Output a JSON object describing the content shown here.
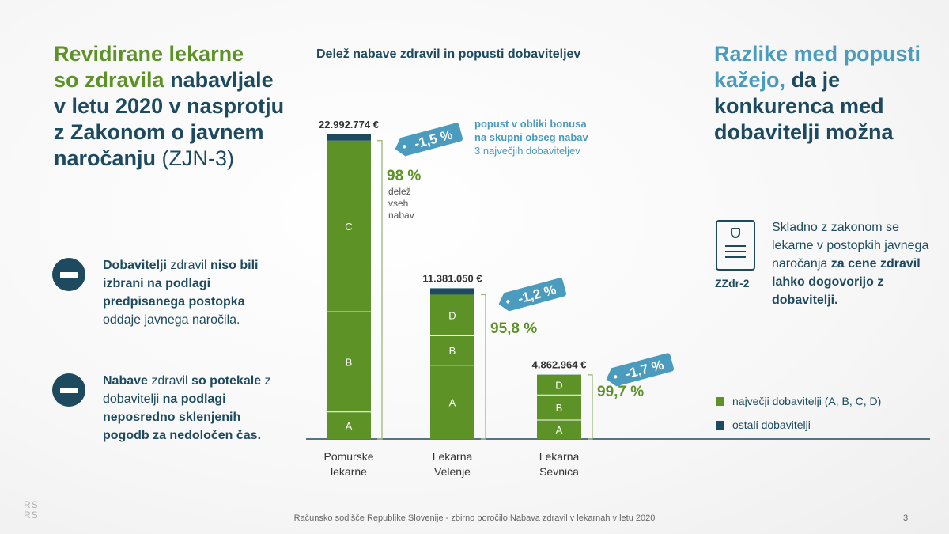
{
  "left": {
    "title_green_1": "Revidirane lekarne",
    "title_green_2": "so zdravila",
    "title_dark": "nabavljale v letu 2020 v nasprotju z Zakonom o javnem naročanju",
    "title_light": "(ZJN-3)",
    "bullets": [
      {
        "b1": "Dobavitelji",
        "n1": " zdravil ",
        "b2": "niso bili izbrani na podlagi predpisanega postopka",
        "n2": " oddaje javnega naročila."
      },
      {
        "b1": "Nabave",
        "n1": " zdravil ",
        "b2": "so potekale",
        "n2": " z dobavitelji ",
        "b3": "na podlagi neposredno sklenjenih pogodb za nedoločen čas."
      }
    ]
  },
  "right": {
    "title_blue": "Razlike med popusti kažejo,",
    "title_dark": "da je konkurenca med dobavitelji možna",
    "doc_label": "ZZdr-2",
    "text_normal": "Skladno z zakonom se lekarne v postopkih javnega naročanja",
    "text_bold": "za cene zdravil lahko dogovorijo z dobavitelji."
  },
  "chart_data": {
    "type": "bar",
    "title": "Delež nabave zdravil in popusti dobaviteljev",
    "categories": [
      "Pomurske lekarne",
      "Lekarna Velenje",
      "Lekarna Sevnica"
    ],
    "category_lines": [
      [
        "Pomurske",
        "lekarne"
      ],
      [
        "Lekarna",
        "Velenje"
      ],
      [
        "Lekarna",
        "Sevnica"
      ]
    ],
    "totals": [
      22992774,
      11381050,
      4862964
    ],
    "total_labels": [
      "22.992.774 €",
      "11.381.050 €",
      "4.862.964 €"
    ],
    "share_labels": [
      "98 %",
      "95,8 %",
      "99,7 %"
    ],
    "share_values": [
      98,
      95.8,
      99.7
    ],
    "discount_labels": [
      "-1,5 %",
      "-1,2 %",
      "-1,7 %"
    ],
    "discount_values": [
      -1.5,
      -1.2,
      -1.7
    ],
    "segments": [
      [
        {
          "label": "A",
          "share": 0.089
        },
        {
          "label": "B",
          "share": 0.329
        },
        {
          "label": "C",
          "share": 0.562
        }
      ],
      [
        {
          "label": "A",
          "share": 0.489
        },
        {
          "label": "B",
          "share": 0.196
        },
        {
          "label": "D",
          "share": 0.273
        }
      ],
      [
        {
          "label": "A",
          "share": 0.294
        },
        {
          "label": "B",
          "share": 0.391
        },
        {
          "label": "D",
          "share": 0.312
        }
      ]
    ],
    "share_note_lines": [
      "delež",
      "vseh",
      "nabav"
    ],
    "bonus_note": {
      "line1": "popust v obliki bonusa",
      "line2": "na skupni obseg nabav",
      "line3": "3 največjih dobaviteljev"
    },
    "legend": [
      {
        "label": "največji dobavitelji (A, B, C, D)",
        "color": "#5c9226"
      },
      {
        "label": "ostali dobavitelji",
        "color": "#1d4a5e"
      }
    ],
    "colors": {
      "main": "#5c9226",
      "other": "#1d4a5e",
      "discount": "#4a9bbd"
    }
  },
  "footer": {
    "text": "Računsko sodišče Republike Slovenije - zbirno poročilo Nabava zdravil v lekarnah v letu 2020",
    "page": "3",
    "logo_1": "RS",
    "logo_2": "RS"
  }
}
